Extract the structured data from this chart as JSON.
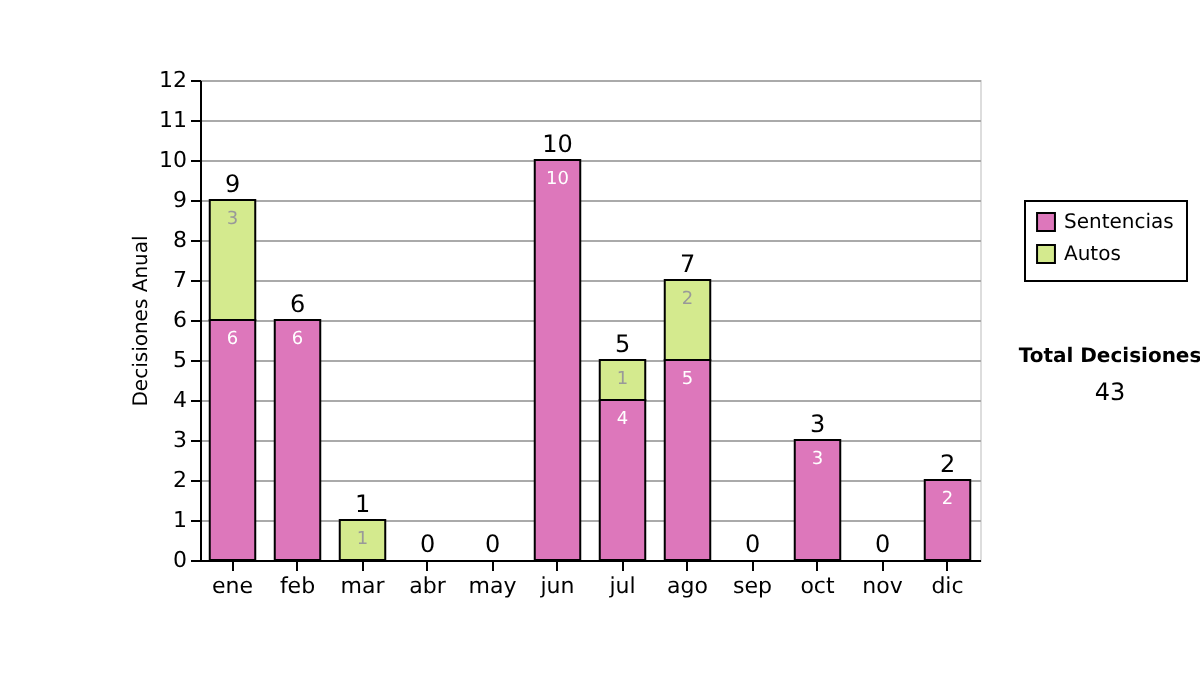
{
  "chart_data": {
    "type": "bar",
    "stacked": true,
    "categories": [
      "ene",
      "feb",
      "mar",
      "abr",
      "may",
      "jun",
      "jul",
      "ago",
      "sep",
      "oct",
      "nov",
      "dic"
    ],
    "ylabel": "Decisiones Anual",
    "series": [
      {
        "name": "Sentencias",
        "color": "#dd77bb",
        "values": [
          6,
          6,
          0,
          0,
          0,
          10,
          4,
          5,
          0,
          3,
          0,
          2
        ],
        "value_labels": [
          "6",
          "6",
          null,
          null,
          null,
          "10",
          "4",
          "5",
          null,
          "3",
          null,
          "2"
        ]
      },
      {
        "name": "Autos",
        "color": "#d4ea8e",
        "values": [
          3,
          0,
          1,
          0,
          0,
          0,
          1,
          2,
          0,
          0,
          0,
          0
        ],
        "value_labels": [
          "3",
          null,
          "1",
          null,
          null,
          null,
          "1",
          "2",
          null,
          null,
          null,
          null
        ]
      }
    ],
    "totals": [
      "9",
      "6",
      "1",
      "0",
      "0",
      "10",
      "5",
      "7",
      "0",
      "3",
      "0",
      "2"
    ],
    "ylim": [
      0,
      12
    ],
    "yticks": [
      0,
      1,
      2,
      3,
      4,
      5,
      6,
      7,
      8,
      9,
      10,
      11,
      12
    ],
    "grid": "y",
    "legend": "right",
    "annotations": [
      "Total Decisiones",
      "43"
    ]
  }
}
